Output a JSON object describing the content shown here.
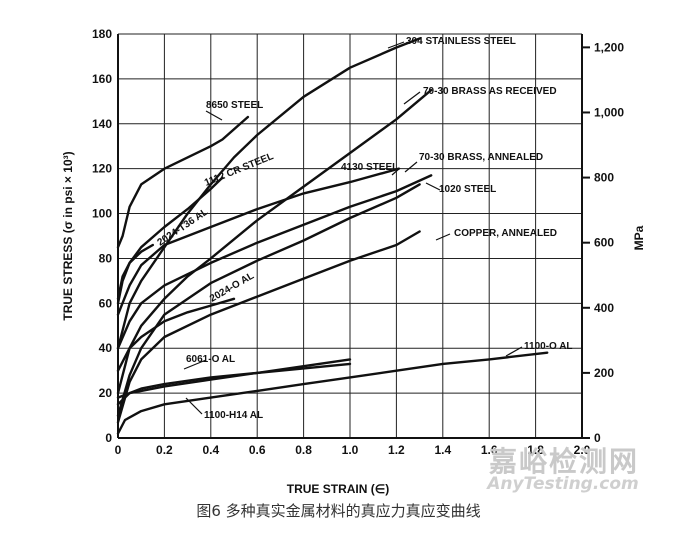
{
  "chart_data": {
    "type": "line",
    "title": "",
    "xlabel": "TRUE STRAIN (∈)",
    "ylabel": "TRUE STRESS (σ in psi × 10³)",
    "y2label": "MPa",
    "xlim": [
      0,
      2.0
    ],
    "ylim": [
      0,
      180
    ],
    "x_ticks": [
      "0",
      "0.2",
      "0.4",
      "0.6",
      "0.8",
      "1.0",
      "1.2",
      "1.4",
      "1.6",
      "1.8",
      "2.0"
    ],
    "y_ticks": [
      "0",
      "20",
      "40",
      "60",
      "80",
      "100",
      "120",
      "140",
      "160",
      "180"
    ],
    "y2_ticks": [
      {
        "mpa": 0,
        "label": "0"
      },
      {
        "mpa": 200,
        "label": "200"
      },
      {
        "mpa": 400,
        "label": "400"
      },
      {
        "mpa": 600,
        "label": "600"
      },
      {
        "mpa": 800,
        "label": "800"
      },
      {
        "mpa": 1000,
        "label": "1,000"
      },
      {
        "mpa": 1200,
        "label": "1,200"
      }
    ],
    "grid": true,
    "series": [
      {
        "name": "304 STAINLESS STEEL",
        "x": [
          0,
          0.05,
          0.1,
          0.2,
          0.3,
          0.4,
          0.5,
          0.6,
          0.8,
          1.0,
          1.2,
          1.3
        ],
        "y": [
          40,
          60,
          70,
          85,
          100,
          113,
          125,
          135,
          152,
          165,
          174,
          178
        ]
      },
      {
        "name": "70-30 BRASS AS RECEIVED",
        "x": [
          0,
          0.05,
          0.1,
          0.2,
          0.3,
          0.4,
          0.6,
          0.8,
          1.0,
          1.2,
          1.35
        ],
        "y": [
          20,
          40,
          50,
          62,
          72,
          80,
          97,
          112,
          127,
          142,
          155
        ]
      },
      {
        "name": "8650 STEEL",
        "x": [
          0,
          0.02,
          0.05,
          0.1,
          0.2,
          0.3,
          0.4,
          0.45,
          0.56
        ],
        "y": [
          85,
          90,
          103,
          113,
          120,
          125,
          130,
          133,
          143
        ]
      },
      {
        "name": "1112 CR STEEL",
        "x": [
          0,
          0.02,
          0.05,
          0.1,
          0.2,
          0.3,
          0.4,
          0.45
        ],
        "y": [
          60,
          70,
          78,
          85,
          94,
          102,
          111,
          116
        ]
      },
      {
        "name": "2024-T36 AL",
        "x": [
          0,
          0.02,
          0.05,
          0.1,
          0.15
        ],
        "y": [
          62,
          72,
          78,
          83,
          86
        ]
      },
      {
        "name": "4130 STEEL",
        "x": [
          0,
          0.05,
          0.1,
          0.2,
          0.4,
          0.6,
          0.8,
          1.0,
          1.21
        ],
        "y": [
          55,
          68,
          77,
          86,
          94,
          102,
          109,
          114,
          120
        ]
      },
      {
        "name": "70-30 BRASS, ANNEALED",
        "x": [
          0,
          0.05,
          0.1,
          0.2,
          0.4,
          0.6,
          0.8,
          1.0,
          1.2,
          1.3
        ],
        "y": [
          10,
          28,
          40,
          55,
          69,
          79,
          88,
          98,
          107,
          113
        ]
      },
      {
        "name": "1020 STEEL",
        "x": [
          0,
          0.05,
          0.1,
          0.2,
          0.4,
          0.6,
          0.8,
          1.0,
          1.2,
          1.35
        ],
        "y": [
          40,
          52,
          60,
          68,
          78,
          87,
          95,
          103,
          110,
          117
        ]
      },
      {
        "name": "COPPER, ANNEALED",
        "x": [
          0,
          0.05,
          0.1,
          0.2,
          0.4,
          0.6,
          0.8,
          1.0,
          1.2,
          1.3
        ],
        "y": [
          7,
          25,
          35,
          45,
          55,
          63,
          71,
          79,
          86,
          92
        ]
      },
      {
        "name": "2024-O AL",
        "x": [
          0,
          0.05,
          0.1,
          0.2,
          0.3,
          0.4,
          0.5
        ],
        "y": [
          30,
          40,
          45,
          52,
          56,
          59,
          62
        ]
      },
      {
        "name": "6061-O AL",
        "x": [
          0,
          0.05,
          0.1,
          0.2,
          0.4,
          0.6,
          0.8,
          1.0
        ],
        "y": [
          15,
          20,
          22,
          24,
          27,
          29,
          31,
          33
        ]
      },
      {
        "name": "1100-H14 AL",
        "x": [
          0,
          0.05,
          0.1,
          0.2,
          0.4,
          0.6,
          0.8,
          1.0
        ],
        "y": [
          18,
          20,
          21,
          23,
          26,
          29,
          32,
          35
        ]
      },
      {
        "name": "1100-O AL",
        "x": [
          0,
          0.03,
          0.1,
          0.2,
          0.4,
          0.6,
          0.8,
          1.0,
          1.2,
          1.4,
          1.6,
          1.85
        ],
        "y": [
          2,
          8,
          12,
          15,
          18,
          21,
          24,
          27,
          30,
          33,
          35,
          38
        ]
      }
    ]
  },
  "caption": "图6 多种真实金属材料的真应力真应变曲线",
  "watermark": {
    "cn": "嘉峪检测网",
    "en": "AnyTesting.com"
  }
}
